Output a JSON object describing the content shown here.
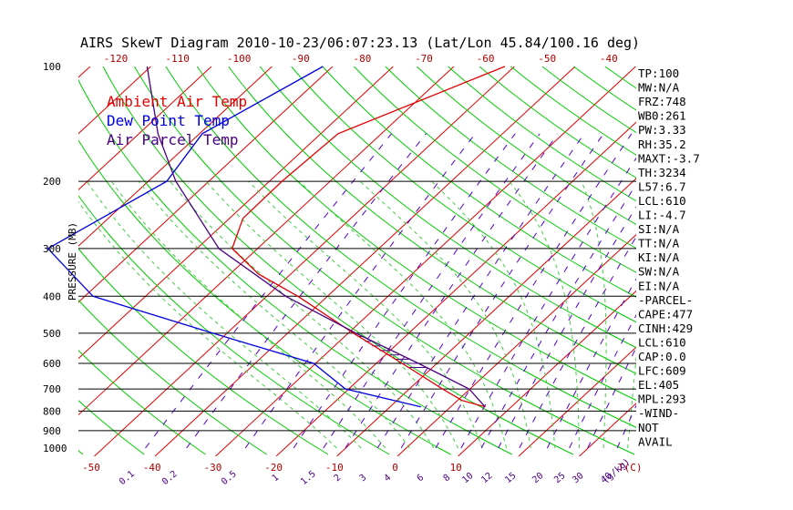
{
  "chart_data": {
    "type": "line",
    "title": "AIRS SkewT Diagram 2010-10-23/06:07:23.13 (Lat/Lon 45.84/100.16 deg)",
    "ylabel": "PRESSURE (MB)",
    "pressure_ticks": [
      100,
      200,
      300,
      400,
      500,
      600,
      700,
      800,
      900,
      1000
    ],
    "top_temp_ticks": [
      "-120",
      "-110",
      "-100",
      "-90",
      "-80",
      "-70",
      "-60",
      "-50",
      "-40"
    ],
    "bottom_temp_ticks": [
      "-50",
      "-40",
      "-30",
      "-20",
      "-10",
      "0",
      "10"
    ],
    "bottom_temp_unit": "T(C)",
    "mixing_ratio_ticks": [
      "0.1",
      "0.2",
      "0.5",
      "1",
      "1.5",
      "2",
      "3",
      "4",
      "6",
      "8",
      "10",
      "12",
      "15",
      "20",
      "25",
      "30",
      "40"
    ],
    "mixing_ratio_unit": "g/kg",
    "legend": [
      {
        "label": "Ambient Air Temp",
        "color": "#e00000"
      },
      {
        "label": "Dew Point Temp",
        "color": "#0000dd"
      },
      {
        "label": "Air Parcel Temp",
        "color": "#4b0082"
      }
    ],
    "series": [
      {
        "name": "Ambient Air Temp",
        "color": "#e00000",
        "points": [
          [
            100,
            -51.6
          ],
          [
            150,
            -66.9
          ],
          [
            200,
            -67.5
          ],
          [
            250,
            -67.2
          ],
          [
            300,
            -63.5
          ],
          [
            350,
            -54.5
          ],
          [
            400,
            -44.0
          ],
          [
            500,
            -28.1
          ],
          [
            600,
            -14.6
          ],
          [
            700,
            -3.3
          ],
          [
            750,
            2.0
          ],
          [
            780,
            7.0
          ]
        ]
      },
      {
        "name": "Dew Point Temp",
        "color": "#0000dd",
        "points": [
          [
            100,
            -81.6
          ],
          [
            150,
            -89.3
          ],
          [
            200,
            -86.5
          ],
          [
            300,
            -93.9
          ],
          [
            400,
            -77.8
          ],
          [
            500,
            -51.3
          ],
          [
            600,
            -29.2
          ],
          [
            700,
            -19.3
          ],
          [
            780,
            -3.6
          ]
        ]
      },
      {
        "name": "Air Parcel Temp",
        "color": "#4b0082",
        "points": [
          [
            100,
            -110.6
          ],
          [
            150,
            -96.6
          ],
          [
            200,
            -85.0
          ],
          [
            300,
            -65.7
          ],
          [
            400,
            -46.0
          ],
          [
            500,
            -27.7
          ],
          [
            600,
            -11.9
          ],
          [
            700,
            1.1
          ],
          [
            780,
            7.0
          ]
        ]
      }
    ],
    "indices": [
      "TP:100",
      "MW:N/A",
      "FRZ:748",
      "WB0:261",
      "PW:3.33",
      "RH:35.2",
      "MAXT:-3.7",
      "TH:3234",
      "L57:6.7",
      "LCL:610",
      "LI:-4.7",
      "SI:N/A",
      "TT:N/A",
      "KI:N/A",
      "SW:N/A",
      "EI:N/A",
      "-PARCEL-",
      "CAPE:477",
      "CINH:429",
      "LCL:610",
      "CAP:0.0",
      "LFC:609",
      "EL:405",
      "MPL:293",
      "-WIND-",
      "NOT",
      "AVAIL"
    ]
  },
  "colors": {
    "isotherm": "#e00000",
    "dry_adiabat": "#00cc00",
    "moist_adiabat": "#44cc44",
    "mixing_ratio": "#5500cc",
    "ambient": "#e00000",
    "dewpoint": "#0000dd",
    "parcel": "#4b0082",
    "isobar": "#000000"
  }
}
